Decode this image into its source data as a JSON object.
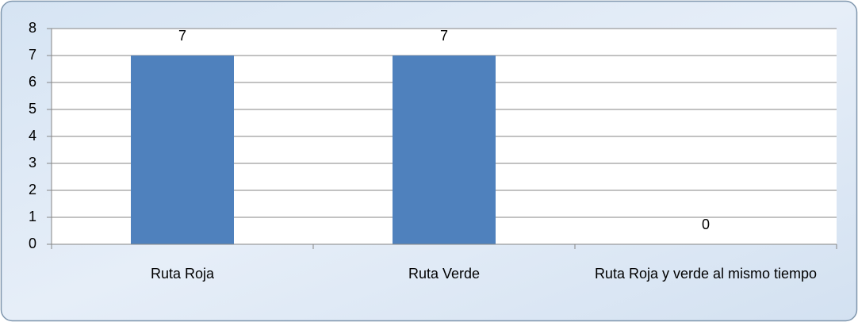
{
  "chart_data": {
    "type": "bar",
    "categories": [
      "Ruta Roja",
      "Ruta Verde",
      "Ruta Roja y verde al mismo tiempo"
    ],
    "values": [
      7,
      7,
      0
    ],
    "color": "#4f81bd",
    "ylim": [
      0,
      8
    ],
    "yticks": [
      0,
      1,
      2,
      3,
      4,
      5,
      6,
      7,
      8
    ],
    "grid": true
  }
}
